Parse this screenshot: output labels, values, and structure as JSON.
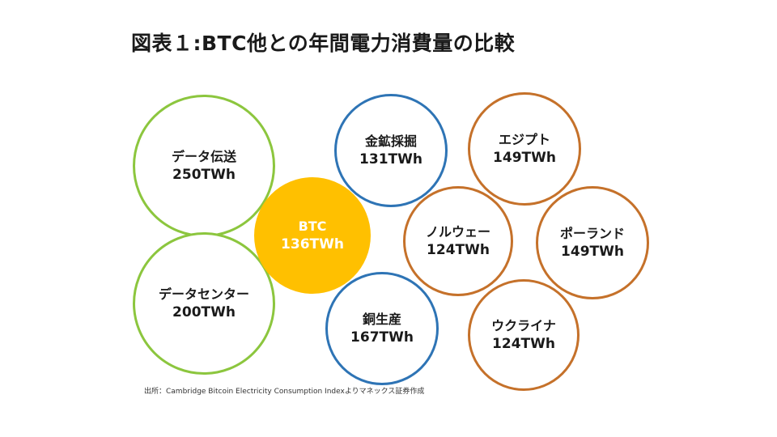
{
  "title": "図表１:BTC他との年間電力消費量の比較",
  "bubbles": {
    "data_transmission": {
      "label": "データ伝送",
      "value": "250TWh",
      "group": "green"
    },
    "data_center": {
      "label": "データセンター",
      "value": "200TWh",
      "group": "green"
    },
    "btc": {
      "label": "BTC",
      "value": "136TWh",
      "group": "yellow"
    },
    "gold_mining": {
      "label": "金鉱採掘",
      "value": "131TWh",
      "group": "blue"
    },
    "copper": {
      "label": "銅生産",
      "value": "167TWh",
      "group": "blue"
    },
    "egypt": {
      "label": "エジプト",
      "value": "149TWh",
      "group": "orange"
    },
    "norway": {
      "label": "ノルウェー",
      "value": "124TWh",
      "group": "orange"
    },
    "poland": {
      "label": "ポーランド",
      "value": "149TWh",
      "group": "orange"
    },
    "ukraine": {
      "label": "ウクライナ",
      "value": "124TWh",
      "group": "orange"
    }
  },
  "colors": {
    "green": "#8cc63e",
    "blue": "#2e74b5",
    "orange": "#c5712a",
    "yellow": "#ffc000"
  },
  "source": "出所：Cambridge Bitcoin Electricity Consumption Indexよりマネックス証券作成"
}
